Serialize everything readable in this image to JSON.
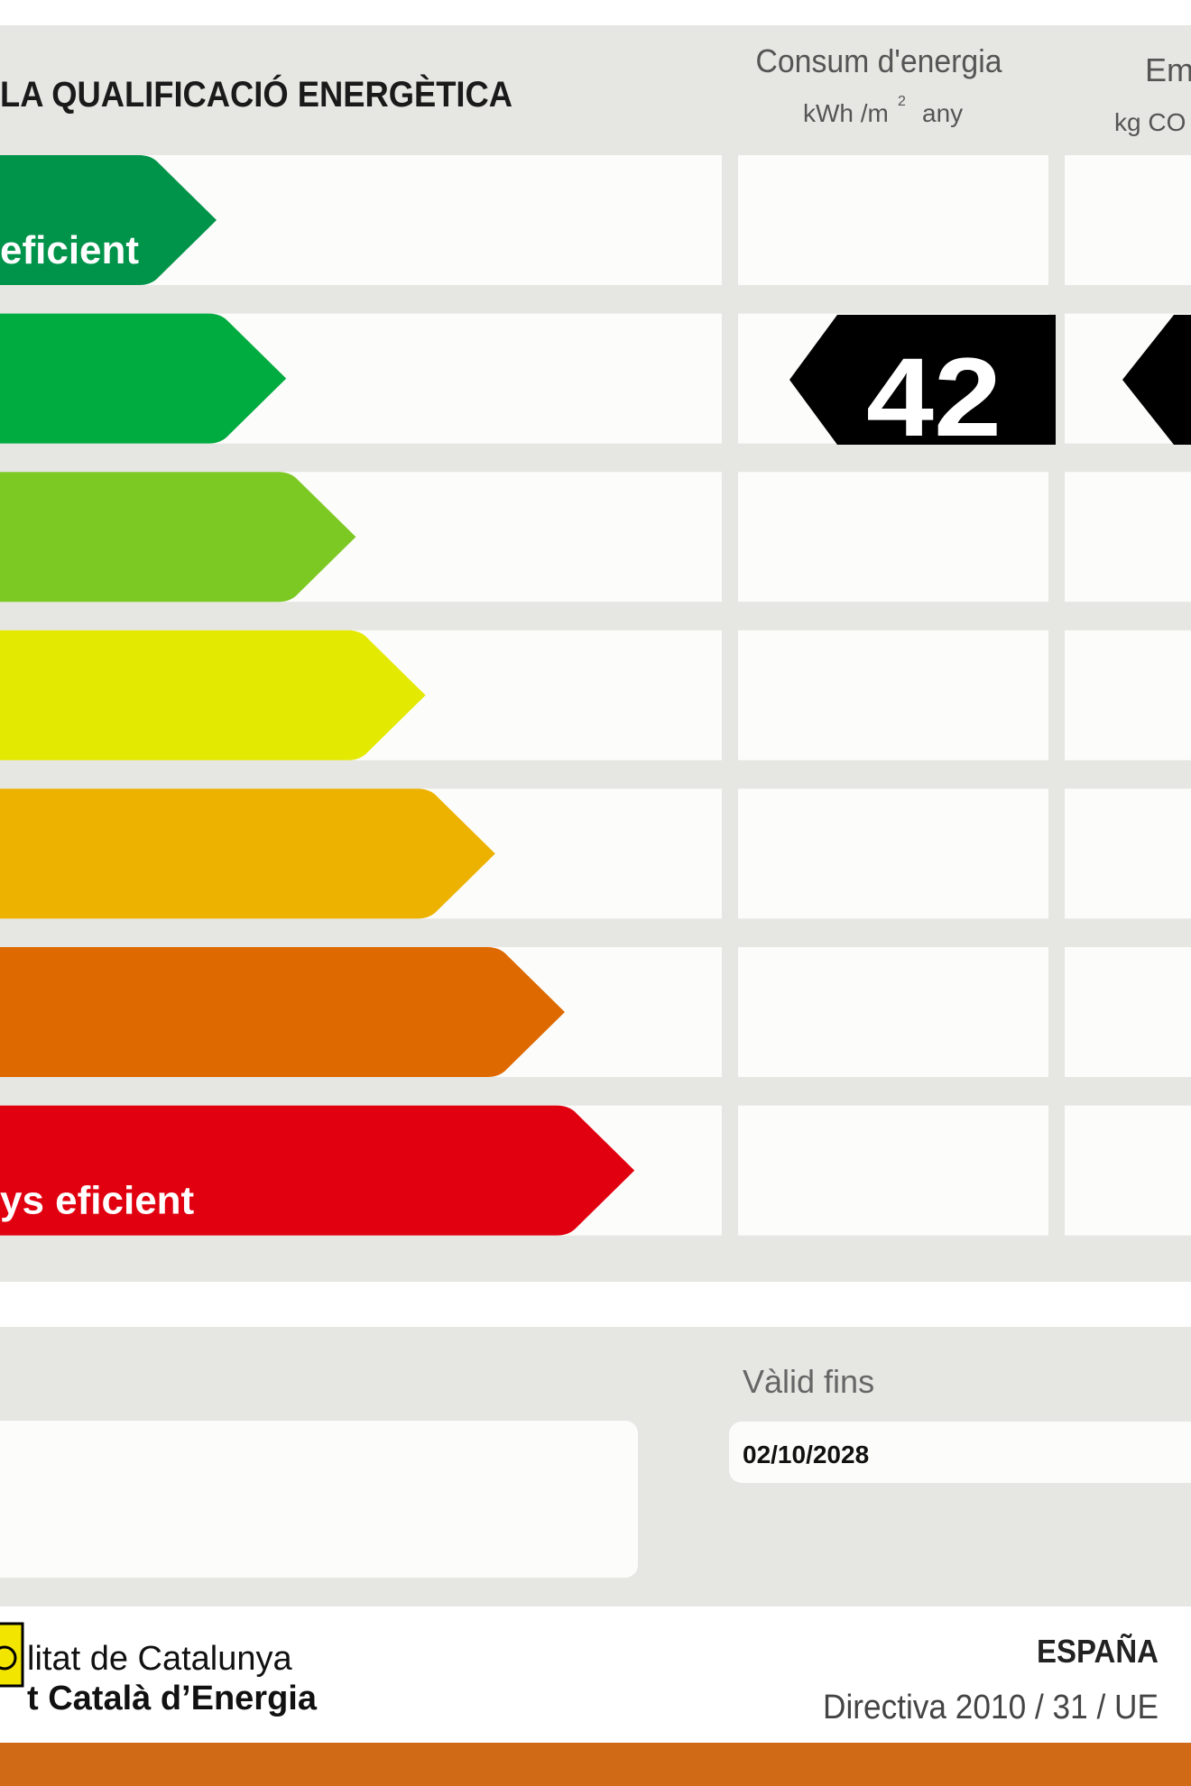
{
  "header": {
    "title": "LA QUALIFICACIÓ ENERGÈTICA",
    "energy_column": {
      "title": "Consum d'energia",
      "unit": "kWh /m",
      "unit_sup": "2",
      "unit_tail": "any"
    },
    "emissions_column": {
      "title": "Em",
      "unit": "kg CO"
    }
  },
  "scale": {
    "top_label": "eficient",
    "bottom_label": "ys eficient",
    "colors": [
      "#00934a",
      "#00ab3f",
      "#7dc924",
      "#e3e900",
      "#edb200",
      "#de6900",
      "#e10010"
    ]
  },
  "rating": {
    "energy": "42"
  },
  "validity": {
    "label": "Vàlid fins",
    "date": "02/10/2028"
  },
  "footer": {
    "org_line1": "litat de Catalunya",
    "org_line2": "t Català d’Energia",
    "country": "ESPAÑA",
    "directive": "Directiva 2010 / 31 / UE"
  }
}
